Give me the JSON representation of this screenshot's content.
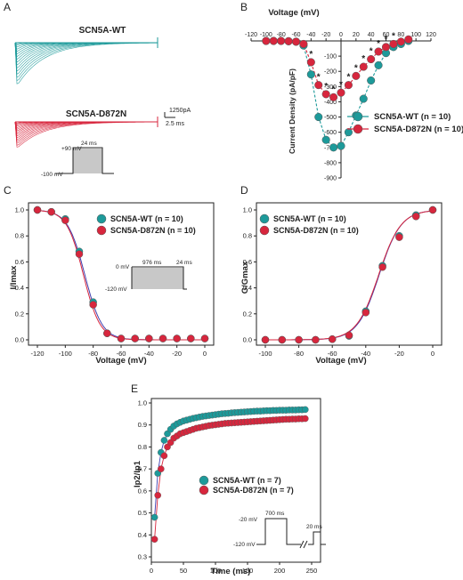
{
  "colors": {
    "wt": "#1d9a9a",
    "mut": "#d7263d",
    "fit": "#3f3fb0",
    "axis": "#222222"
  },
  "panels": {
    "A": {
      "label": "A",
      "wt_label": "SCN5A-WT",
      "mut_label": "SCN5A-D872N",
      "scale_current": "1250pA",
      "scale_time": "2.5 ms",
      "protocol": {
        "top_voltage": "+90 mV",
        "hold_voltage": "-100 mV",
        "duration": "24 ms"
      }
    },
    "B": {
      "label": "B"
    },
    "C": {
      "label": "C",
      "protocol": {
        "v0": "0 mV",
        "v1": "-120 mV",
        "d1": "976 ms",
        "d2": "24 ms"
      }
    },
    "D": {
      "label": "D"
    },
    "E": {
      "label": "E",
      "protocol": {
        "v0": "-20 mV",
        "v1": "-120 mV",
        "d1": "700 ms",
        "d2": "20 ms"
      }
    }
  },
  "chart_data": [
    {
      "panel": "B",
      "type": "line",
      "xlabel": "Voltage (mV)",
      "ylabel": "Current Density (pA/pF)",
      "xlim": [
        -120,
        120
      ],
      "ylim": [
        -900,
        0
      ],
      "xticks": [
        "-120",
        "-100",
        "-80",
        "-60",
        "-40",
        "-20",
        "0",
        "20",
        "40",
        "60",
        "80",
        "100",
        "120"
      ],
      "yticks": [
        "0",
        "-100",
        "-200",
        "-300",
        "-400",
        "-500",
        "-600",
        "-700",
        "-800",
        "-900"
      ],
      "legend_position": "right",
      "series": [
        {
          "name": "SCN5A-WT",
          "n": "(n = 10)",
          "x": [
            -100,
            -90,
            -80,
            -70,
            -60,
            -50,
            -40,
            -30,
            -20,
            -10,
            0,
            10,
            20,
            30,
            40,
            50,
            60,
            70,
            80,
            90
          ],
          "y": [
            0,
            0,
            0,
            -2,
            -5,
            -30,
            -220,
            -500,
            -650,
            -700,
            -690,
            -600,
            -490,
            -380,
            -260,
            -160,
            -80,
            -40,
            -20,
            0
          ]
        },
        {
          "name": "SCN5A-D872N",
          "n": "(n = 10)",
          "x": [
            -100,
            -90,
            -80,
            -70,
            -60,
            -50,
            -40,
            -30,
            -20,
            -10,
            0,
            10,
            20,
            30,
            40,
            50,
            60,
            70,
            80,
            90
          ],
          "y": [
            0,
            0,
            0,
            -2,
            -5,
            -20,
            -140,
            -290,
            -350,
            -370,
            -340,
            -290,
            -230,
            -170,
            -120,
            -70,
            -40,
            -20,
            -5,
            10
          ]
        }
      ],
      "significance": {
        "symbol": "*",
        "x": [
          -40,
          -30,
          -20,
          -10,
          0,
          10,
          20,
          30,
          40,
          50,
          60,
          70
        ]
      }
    },
    {
      "panel": "C",
      "type": "scatter",
      "xlabel": "Voltage (mV)",
      "ylabel": "I/Imax",
      "xlim": [
        -120,
        0
      ],
      "ylim": [
        0,
        1.0
      ],
      "xticks": [
        "-120",
        "-100",
        "-80",
        "-60",
        "-40",
        "-20",
        "0"
      ],
      "yticks": [
        "0.0",
        "0.2",
        "0.4",
        "0.6",
        "0.8",
        "1.0"
      ],
      "legend_position": "top-right",
      "series": [
        {
          "name": "SCN5A-WT",
          "n": "(n = 10)",
          "x": [
            -120,
            -110,
            -100,
            -90,
            -80,
            -70,
            -60,
            -50,
            -40,
            -30,
            -20,
            -10,
            0
          ],
          "y": [
            1.0,
            0.985,
            0.93,
            0.68,
            0.29,
            0.05,
            0.01,
            0.01,
            0.01,
            0.01,
            0.01,
            0.01,
            0.01
          ]
        },
        {
          "name": "SCN5A-D872N",
          "n": "(n = 10)",
          "x": [
            -120,
            -110,
            -100,
            -90,
            -80,
            -70,
            -60,
            -50,
            -40,
            -30,
            -20,
            -10,
            0
          ],
          "y": [
            1.0,
            0.985,
            0.92,
            0.66,
            0.27,
            0.05,
            0.01,
            0.01,
            0.01,
            0.01,
            0.01,
            0.01,
            0.01
          ]
        }
      ]
    },
    {
      "panel": "D",
      "type": "scatter",
      "xlabel": "Voltage (mV)",
      "ylabel": "G/Gmax",
      "xlim": [
        -100,
        0
      ],
      "ylim": [
        0,
        1.0
      ],
      "xticks": [
        "-100",
        "-80",
        "-60",
        "-40",
        "-20",
        "0"
      ],
      "yticks": [
        "0.0",
        "0.2",
        "0.4",
        "0.6",
        "0.8",
        "1.0"
      ],
      "legend_position": "top-left",
      "series": [
        {
          "name": "SCN5A-WT",
          "n": "(n = 10)",
          "x": [
            -100,
            -90,
            -80,
            -70,
            -60,
            -50,
            -40,
            -30,
            -20,
            -10,
            0
          ],
          "y": [
            0,
            0,
            0,
            0,
            0.005,
            0.03,
            0.22,
            0.57,
            0.8,
            0.96,
            1.0
          ]
        },
        {
          "name": "SCN5A-D872N",
          "n": "(n = 10)",
          "x": [
            -100,
            -90,
            -80,
            -70,
            -60,
            -50,
            -40,
            -30,
            -20,
            -10,
            0
          ],
          "y": [
            0,
            0,
            0,
            0,
            0.005,
            0.035,
            0.21,
            0.56,
            0.79,
            0.95,
            1.0
          ]
        }
      ]
    },
    {
      "panel": "E",
      "type": "scatter",
      "xlabel": "Time (ms)",
      "ylabel": "Ip2/Ip1",
      "xlim": [
        0,
        250
      ],
      "ylim": [
        0.3,
        1.0
      ],
      "xticks": [
        "0",
        "50",
        "100",
        "150",
        "200",
        "250"
      ],
      "yticks": [
        "0.3",
        "0.4",
        "0.5",
        "0.6",
        "0.7",
        "0.8",
        "0.9",
        "1.0"
      ],
      "legend_position": "lower-left",
      "series": [
        {
          "name": "SCN5A-WT",
          "n": "(n = 7)"
        },
        {
          "name": "SCN5A-D872N",
          "n": "(n = 7)"
        }
      ],
      "x": [
        5,
        10,
        15,
        20,
        25,
        30,
        35,
        40,
        45,
        50,
        55,
        60,
        65,
        70,
        75,
        80,
        85,
        90,
        95,
        100,
        105,
        110,
        115,
        120,
        125,
        130,
        135,
        140,
        145,
        150,
        155,
        160,
        165,
        170,
        175,
        180,
        185,
        190,
        195,
        200,
        205,
        210,
        215,
        220,
        225,
        230,
        235,
        240
      ],
      "wt": [
        0.48,
        0.68,
        0.775,
        0.83,
        0.86,
        0.88,
        0.895,
        0.905,
        0.912,
        0.918,
        0.922,
        0.926,
        0.93,
        0.933,
        0.936,
        0.939,
        0.941,
        0.943,
        0.945,
        0.947,
        0.949,
        0.951,
        0.952,
        0.953,
        0.955,
        0.956,
        0.957,
        0.958,
        0.959,
        0.96,
        0.961,
        0.962,
        0.963,
        0.963,
        0.964,
        0.965,
        0.965,
        0.966,
        0.966,
        0.967,
        0.967,
        0.967,
        0.968,
        0.968,
        0.968,
        0.969,
        0.969,
        0.97
      ],
      "mut": [
        0.38,
        0.58,
        0.7,
        0.76,
        0.8,
        0.82,
        0.84,
        0.85,
        0.86,
        0.865,
        0.87,
        0.875,
        0.88,
        0.885,
        0.888,
        0.891,
        0.894,
        0.897,
        0.899,
        0.901,
        0.903,
        0.905,
        0.907,
        0.908,
        0.909,
        0.91,
        0.911,
        0.912,
        0.913,
        0.914,
        0.915,
        0.916,
        0.917,
        0.918,
        0.919,
        0.92,
        0.921,
        0.922,
        0.923,
        0.924,
        0.925,
        0.926,
        0.926,
        0.927,
        0.927,
        0.928,
        0.928,
        0.929
      ]
    }
  ]
}
